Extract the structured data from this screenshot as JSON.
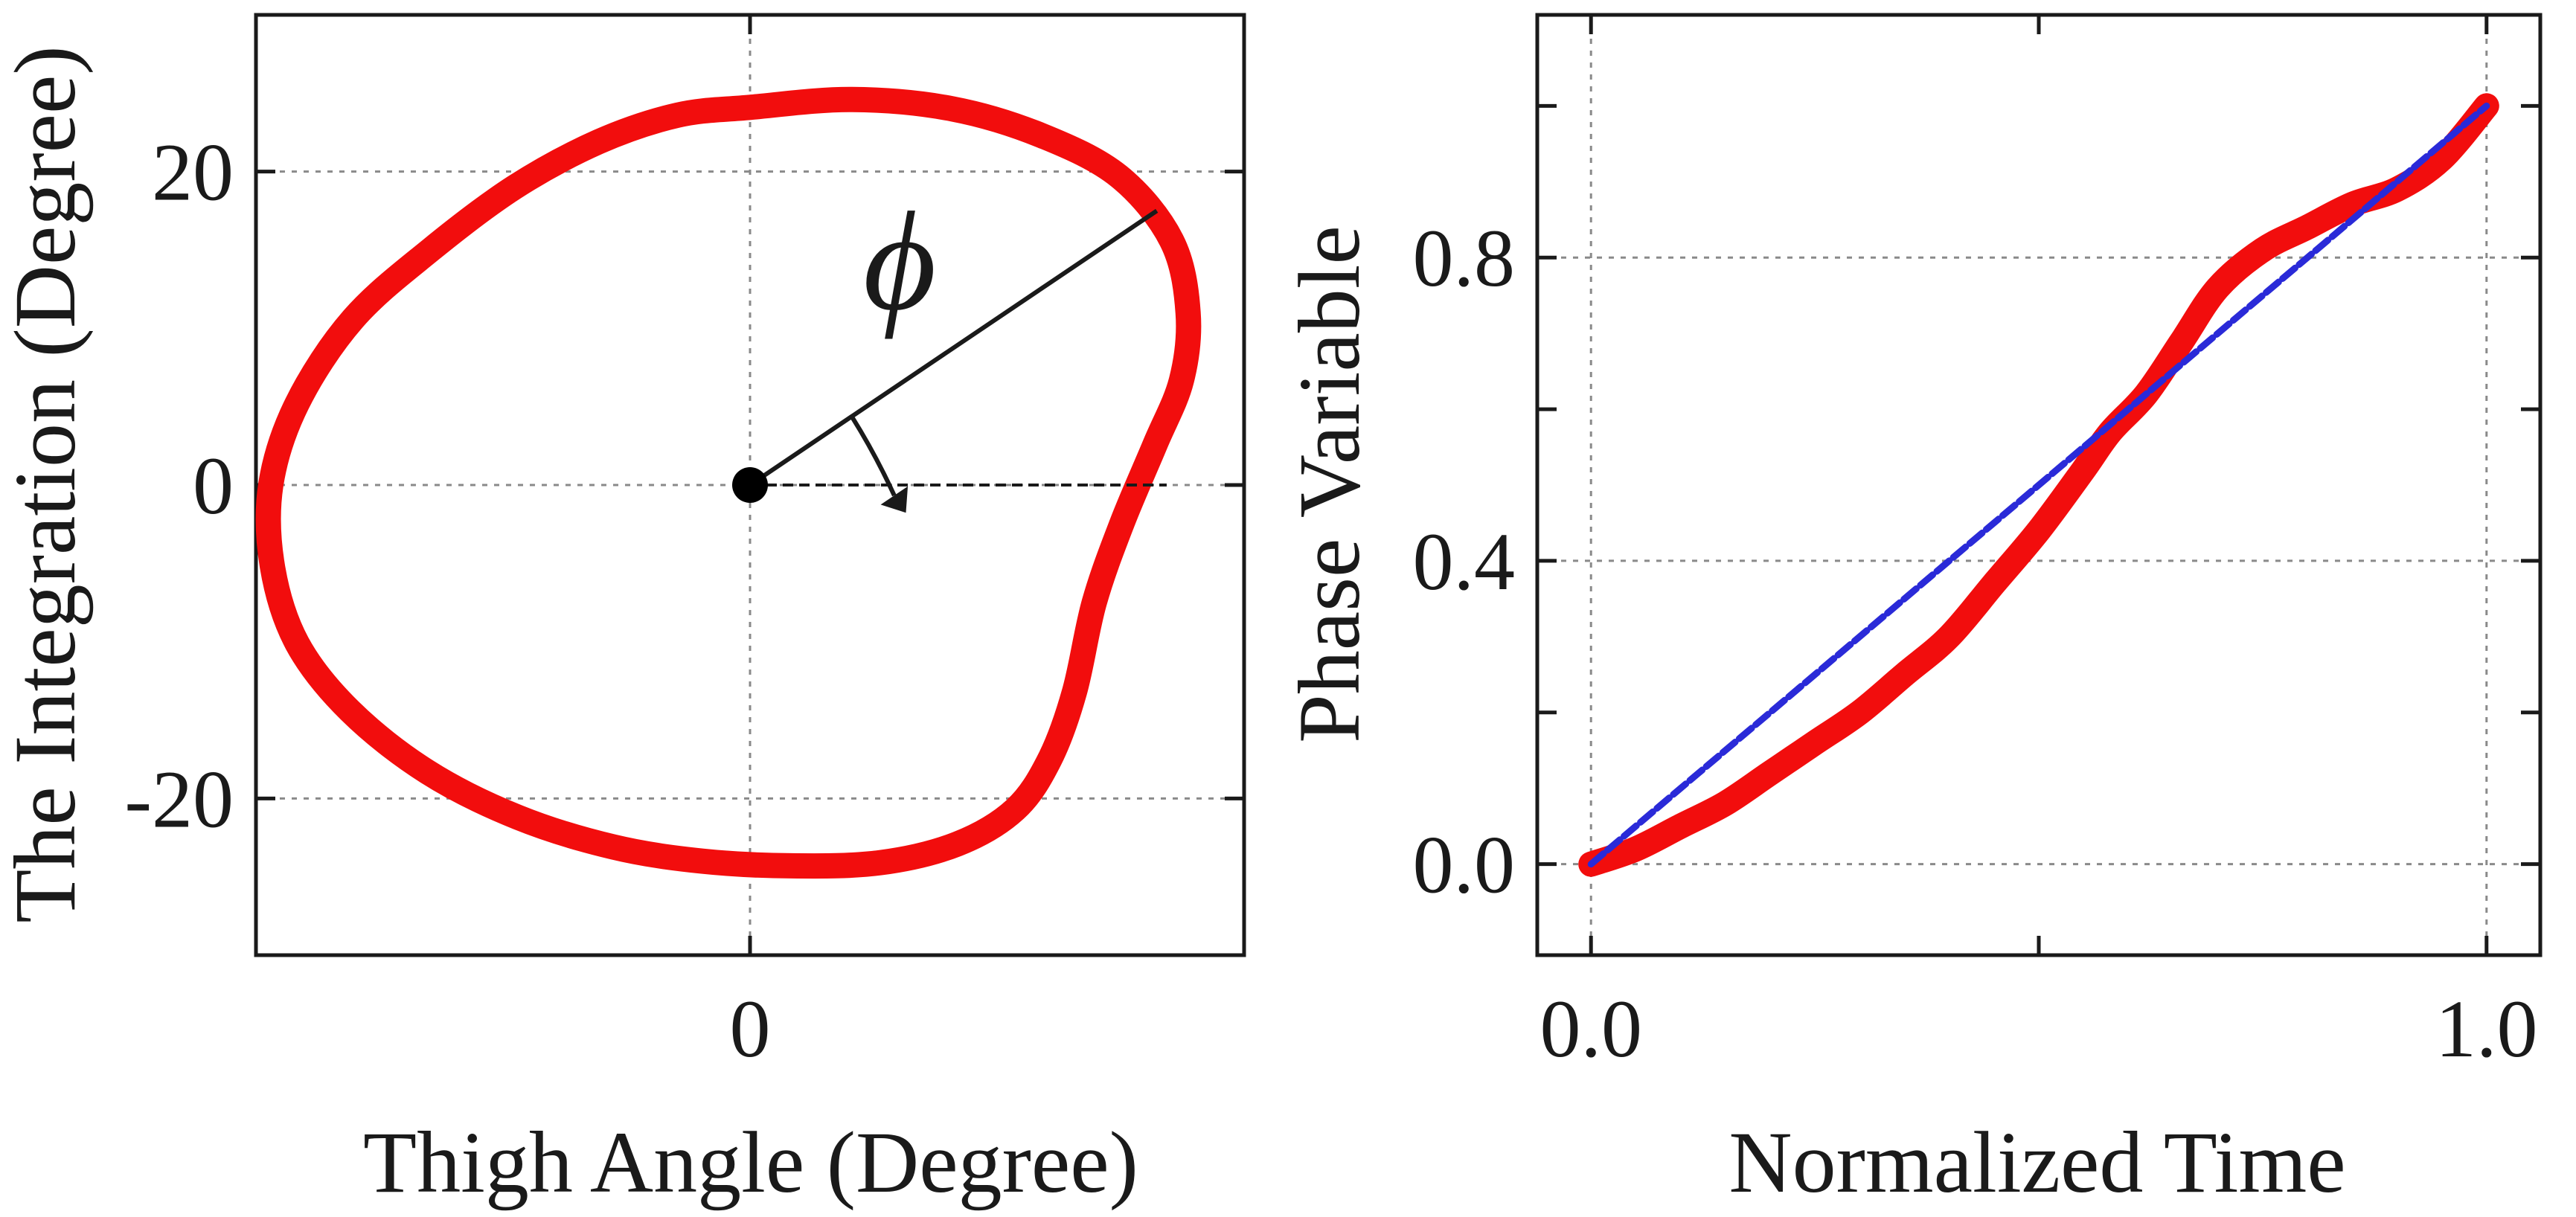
{
  "colors": {
    "curve": "#f20d0d",
    "reference": "#2a2ad8",
    "axis": "#1a1a1a",
    "grid": "#8a8a8a"
  },
  "chart_data": [
    {
      "type": "line",
      "title": "",
      "xlabel": "Thigh Angle (Degree)",
      "ylabel": "The Integration (Degree)",
      "xlim": [
        -30,
        30
      ],
      "ylim": [
        -30,
        30
      ],
      "x_ticks": [
        -30,
        0,
        30
      ],
      "x_tick_labels": [
        "0"
      ],
      "x_tick_label_values": [
        0
      ],
      "y_ticks": [
        -20,
        0,
        20
      ],
      "y_tick_labels": [
        "-20",
        "0",
        "20"
      ],
      "grid": true,
      "annotation": {
        "label": "ϕ",
        "origin": [
          0,
          0
        ],
        "radius_endpoint": [
          24.7,
          17.5
        ],
        "reference_line": "dashed horizontal from origin along +x"
      },
      "series": [
        {
          "name": "phase portrait",
          "closed": true,
          "x": [
            0,
            -4.4,
            -9.2,
            -14.3,
            -19.4,
            -24.1,
            -27.5,
            -29.1,
            -29.0,
            -27.5,
            -24.3,
            -19.6,
            -14.1,
            -8.3,
            -2.9,
            2.5,
            7.9,
            12.6,
            16.1,
            18.2,
            19.7,
            20.9,
            22.6,
            24.6,
            26.2,
            26.6,
            25.6,
            22.4,
            17.7,
            12.3,
            6.2,
            0
          ],
          "y": [
            24.1,
            23.6,
            21.9,
            19.0,
            15.0,
            10.6,
            5.2,
            0.0,
            -5.2,
            -10.1,
            -14.4,
            -18.3,
            -21.2,
            -23.1,
            -24.0,
            -24.3,
            -24.1,
            -22.9,
            -20.7,
            -17.5,
            -13.2,
            -7.5,
            -2.4,
            2.6,
            6.7,
            11.0,
            15.6,
            19.7,
            22.3,
            24.0,
            24.6,
            24.1
          ]
        }
      ]
    },
    {
      "type": "line",
      "title": "",
      "xlabel": "Normalized Time",
      "ylabel": "Phase Variable",
      "xlim": [
        -0.06,
        1.06
      ],
      "ylim": [
        -0.12,
        1.12
      ],
      "x_ticks": [
        0.0,
        0.5,
        1.0
      ],
      "x_tick_labels": [
        "0.0",
        "1.0"
      ],
      "x_tick_label_values": [
        0.0,
        1.0
      ],
      "y_ticks": [
        0.0,
        0.2,
        0.4,
        0.6,
        0.8,
        1.0
      ],
      "y_tick_labels": [
        "0.0",
        "0.4",
        "0.8"
      ],
      "y_tick_label_values": [
        0.0,
        0.4,
        0.8
      ],
      "grid": true,
      "series": [
        {
          "name": "phase variable",
          "style": "solid-thick",
          "x": [
            0.0,
            0.05,
            0.1,
            0.15,
            0.2,
            0.25,
            0.3,
            0.35,
            0.4,
            0.45,
            0.5,
            0.55,
            0.58,
            0.62,
            0.66,
            0.7,
            0.75,
            0.8,
            0.85,
            0.9,
            0.95,
            1.0
          ],
          "y": [
            0.0,
            0.02,
            0.05,
            0.08,
            0.12,
            0.16,
            0.2,
            0.25,
            0.3,
            0.37,
            0.44,
            0.52,
            0.57,
            0.62,
            0.69,
            0.76,
            0.81,
            0.84,
            0.87,
            0.89,
            0.93,
            1.0
          ]
        },
        {
          "name": "linear reference",
          "style": "dashed",
          "x": [
            0.0,
            1.0
          ],
          "y": [
            0.0,
            1.0
          ]
        }
      ]
    }
  ]
}
